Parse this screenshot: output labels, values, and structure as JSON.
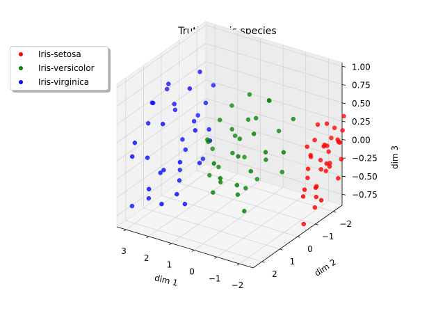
{
  "chart_data": {
    "type": "scatter",
    "title": "Truth for Iris species",
    "xlabel": "dim 1",
    "ylabel": "dim 2",
    "zlabel": "dim 3",
    "xlim": [
      -2.6,
      3.4
    ],
    "ylim": [
      -2.5,
      2.5
    ],
    "zlim": [
      -0.9,
      1.05
    ],
    "xticks": [
      3,
      2,
      1,
      0,
      -1,
      -2
    ],
    "xtick_labels": [
      "3",
      "2",
      "1",
      "0",
      "−1",
      "−2"
    ],
    "yticks": [
      -2,
      -1,
      0,
      1,
      2
    ],
    "ytick_labels": [
      "−2",
      "−1",
      "0",
      "1",
      "2"
    ],
    "zticks": [
      -0.75,
      -0.5,
      -0.25,
      0.0,
      0.25,
      0.5,
      0.75,
      1.0
    ],
    "ztick_labels": [
      "−0.75",
      "−0.50",
      "−0.25",
      "0.00",
      "0.25",
      "0.50",
      "0.75",
      "1.00"
    ],
    "grid": true,
    "legend_position": "upper-left",
    "series": [
      {
        "name": "Iris-setosa",
        "color": "#ff0000",
        "points": [
          [
            -2.3,
            -1.9,
            0.0
          ],
          [
            -2.4,
            -2.0,
            -0.1
          ],
          [
            -2.1,
            -1.6,
            0.1
          ],
          [
            -2.5,
            -2.2,
            0.2
          ],
          [
            -2.2,
            -1.8,
            -0.2
          ],
          [
            -2.6,
            -2.3,
            0.0
          ],
          [
            -2.3,
            -1.7,
            -0.3
          ],
          [
            -2.0,
            -1.5,
            -0.1
          ],
          [
            -2.4,
            -1.9,
            0.3
          ],
          [
            -2.2,
            -2.1,
            -0.4
          ],
          [
            -2.7,
            -2.4,
            0.15
          ],
          [
            -2.5,
            -1.6,
            0.05
          ],
          [
            -2.1,
            -1.2,
            -0.35
          ],
          [
            -2.3,
            -1.4,
            -0.5
          ],
          [
            -2.6,
            -1.8,
            -0.25
          ],
          [
            -2.4,
            -1.3,
            -0.6
          ],
          [
            -2.2,
            -1.1,
            -0.2
          ],
          [
            -2.8,
            -2.0,
            0.1
          ],
          [
            -2.0,
            -1.9,
            0.25
          ],
          [
            -2.5,
            -2.5,
            -0.05
          ],
          [
            -2.3,
            -2.2,
            -0.3
          ],
          [
            -2.1,
            -1.7,
            -0.55
          ],
          [
            -2.7,
            -1.5,
            -0.15
          ],
          [
            -2.4,
            -1.0,
            0.0
          ],
          [
            -2.9,
            -1.9,
            -0.4
          ],
          [
            -2.2,
            -0.9,
            -0.45
          ],
          [
            -2.6,
            -2.6,
            0.3
          ],
          [
            -2.0,
            -1.3,
            0.05
          ],
          [
            -2.5,
            -1.1,
            -0.7
          ],
          [
            -2.3,
            -0.7,
            -0.5
          ],
          [
            -2.8,
            -2.2,
            -0.2
          ],
          [
            -2.1,
            -2.3,
            -0.1
          ],
          [
            -2.4,
            -0.6,
            -0.85
          ],
          [
            -2.7,
            -1.2,
            -0.6
          ],
          [
            -2.2,
            -2.4,
            0.0
          ]
        ]
      },
      {
        "name": "Iris-versicolor",
        "color": "#008000",
        "points": [
          [
            -0.4,
            -1.2,
            0.55
          ],
          [
            0.2,
            -0.8,
            0.3
          ],
          [
            -0.6,
            -1.5,
            0.1
          ],
          [
            0.5,
            -0.3,
            -0.1
          ],
          [
            0.1,
            -0.2,
            0.15
          ],
          [
            -0.3,
            -0.6,
            0.4
          ],
          [
            0.8,
            0.1,
            -0.25
          ],
          [
            -0.9,
            -1.3,
            -0.4
          ],
          [
            0.3,
            -1.0,
            0.6
          ],
          [
            -0.2,
            0.3,
            -0.5
          ],
          [
            0.6,
            -0.4,
            0.2
          ],
          [
            -0.8,
            -0.5,
            0.0
          ],
          [
            0.9,
            -0.1,
            0.35
          ],
          [
            -0.5,
            -0.9,
            -0.2
          ],
          [
            0.4,
            0.5,
            -0.35
          ],
          [
            -0.1,
            -1.6,
            0.45
          ],
          [
            0.7,
            -0.7,
            0.05
          ],
          [
            -0.7,
            0.2,
            -0.15
          ],
          [
            1.1,
            0.3,
            0.1
          ],
          [
            0.0,
            -0.4,
            -0.55
          ],
          [
            -1.0,
            -1.8,
            0.25
          ],
          [
            0.5,
            0.8,
            -0.45
          ],
          [
            -0.4,
            0.6,
            -0.3
          ],
          [
            1.3,
            -0.2,
            -0.1
          ],
          [
            0.2,
            -1.3,
            -0.6
          ],
          [
            -0.6,
            -0.1,
            0.3
          ],
          [
            0.9,
            0.6,
            0.2
          ],
          [
            -1.2,
            -1.0,
            -0.05
          ],
          [
            0.1,
            0.9,
            -0.2
          ],
          [
            1.0,
            -0.9,
            0.4
          ],
          [
            -0.3,
            0.4,
            0.05
          ],
          [
            0.6,
            -1.1,
            -0.3
          ],
          [
            -0.8,
            0.7,
            -0.6
          ],
          [
            1.2,
            0.1,
            -0.4
          ],
          [
            0.3,
            1.0,
            0.0
          ]
        ]
      },
      {
        "name": "Iris-virginica",
        "color": "#0000ff",
        "points": [
          [
            2.2,
            0.8,
            0.6
          ],
          [
            1.8,
            0.2,
            0.3
          ],
          [
            2.5,
            1.2,
            -0.3
          ],
          [
            1.6,
            -0.2,
            0.5
          ],
          [
            2.0,
            0.6,
            0.1
          ],
          [
            2.8,
            1.5,
            0.4
          ],
          [
            1.4,
            0.4,
            -0.2
          ],
          [
            2.3,
            1.0,
            0.9
          ],
          [
            1.9,
            0.9,
            -0.4
          ],
          [
            2.6,
            1.8,
            0.0
          ],
          [
            1.5,
            -0.5,
            0.7
          ],
          [
            2.1,
            0.3,
            -0.1
          ],
          [
            3.0,
            2.0,
            0.2
          ],
          [
            1.7,
            1.3,
            -0.5
          ],
          [
            2.4,
            0.5,
            0.45
          ],
          [
            1.3,
            0.0,
            0.2
          ],
          [
            2.7,
            1.6,
            -0.6
          ],
          [
            1.6,
            0.7,
            0.85
          ],
          [
            2.2,
            1.4,
            -0.2
          ],
          [
            1.8,
            -0.3,
            -0.3
          ],
          [
            2.9,
            1.1,
            0.6
          ],
          [
            1.2,
            0.9,
            0.35
          ],
          [
            2.0,
            1.7,
            0.5
          ],
          [
            2.5,
            0.1,
            -0.45
          ],
          [
            1.4,
            1.5,
            0.0
          ],
          [
            3.2,
            1.9,
            -0.7
          ],
          [
            1.7,
            0.0,
            0.95
          ],
          [
            2.3,
            2.1,
            -0.35
          ],
          [
            1.1,
            0.2,
            0.1
          ],
          [
            2.6,
            0.7,
            0.75
          ],
          [
            1.9,
            1.9,
            -0.55
          ],
          [
            2.8,
            2.4,
            0.1
          ],
          [
            1.5,
            1.1,
            -0.65
          ],
          [
            2.1,
            -0.4,
            0.25
          ],
          [
            3.1,
            0.9,
            0.55
          ]
        ]
      }
    ]
  }
}
